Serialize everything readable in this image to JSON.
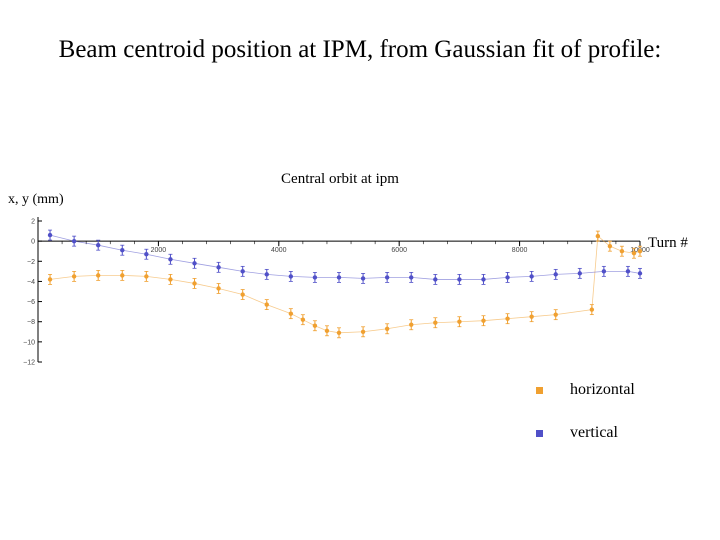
{
  "slide": {
    "title": "Beam centroid position at IPM, from Gaussian fit of profile:"
  },
  "chart_data": {
    "type": "scatter",
    "title": "Central orbit at ipm",
    "xlabel": "Turn #",
    "ylabel": "x, y (mm)",
    "xlim": [
      0,
      10000
    ],
    "ylim": [
      -12,
      2
    ],
    "x_ticks": [
      2000,
      4000,
      6000,
      8000,
      10000
    ],
    "y_ticks": [
      2,
      0,
      -2,
      -4,
      -6,
      -8,
      -10,
      -12
    ],
    "error_bars": true,
    "grid": false,
    "legend_position": "bottom-right",
    "series": [
      {
        "name": "horizontal",
        "color": "#f0a030",
        "x": [
          200,
          600,
          1000,
          1400,
          1800,
          2200,
          2600,
          3000,
          3400,
          3800,
          4200,
          4400,
          4600,
          4800,
          5000,
          5400,
          5800,
          6200,
          6600,
          7000,
          7400,
          7800,
          8200,
          8600,
          9200,
          9300,
          9500,
          9700,
          9900,
          10000
        ],
        "y": [
          -3.8,
          -3.5,
          -3.4,
          -3.4,
          -3.5,
          -3.8,
          -4.2,
          -4.7,
          -5.3,
          -6.3,
          -7.2,
          -7.8,
          -8.4,
          -8.9,
          -9.1,
          -9.0,
          -8.7,
          -8.3,
          -8.1,
          -8.0,
          -7.9,
          -7.7,
          -7.5,
          -7.3,
          -6.8,
          0.5,
          -0.5,
          -1.0,
          -1.2,
          -1.0
        ]
      },
      {
        "name": "vertical",
        "color": "#5050c8",
        "x": [
          200,
          600,
          1000,
          1400,
          1800,
          2200,
          2600,
          3000,
          3400,
          3800,
          4200,
          4600,
          5000,
          5400,
          5800,
          6200,
          6600,
          7000,
          7400,
          7800,
          8200,
          8600,
          9000,
          9400,
          9800,
          10000
        ],
        "y": [
          0.6,
          0.0,
          -0.4,
          -0.9,
          -1.3,
          -1.8,
          -2.2,
          -2.6,
          -3.0,
          -3.3,
          -3.5,
          -3.6,
          -3.6,
          -3.7,
          -3.6,
          -3.6,
          -3.8,
          -3.8,
          -3.8,
          -3.6,
          -3.5,
          -3.3,
          -3.2,
          -3.0,
          -3.0,
          -3.2
        ]
      }
    ]
  }
}
